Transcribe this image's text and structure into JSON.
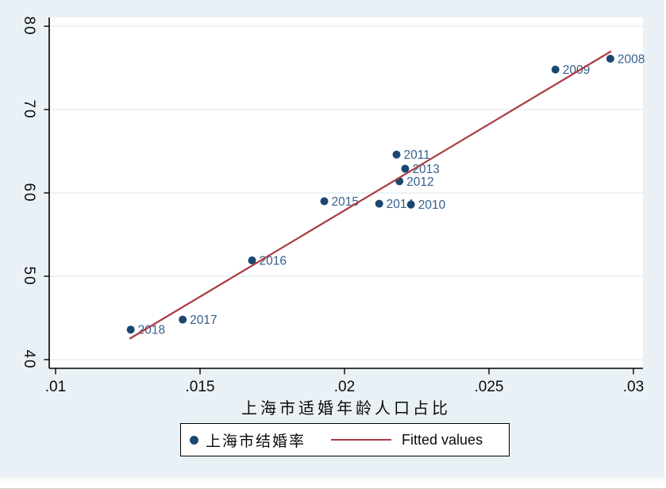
{
  "chart_data": {
    "type": "scatter",
    "title": "",
    "xlabel": "上海市适婚年龄人口占比",
    "ylabel": "",
    "xlim": [
      0.01,
      0.03
    ],
    "ylim": [
      40,
      80
    ],
    "x_ticks": [
      {
        "value": 0.01,
        "label": ".01"
      },
      {
        "value": 0.015,
        "label": ".015"
      },
      {
        "value": 0.02,
        "label": ".02"
      },
      {
        "value": 0.025,
        "label": ".025"
      },
      {
        "value": 0.03,
        "label": ".03"
      }
    ],
    "y_ticks": [
      {
        "value": 40,
        "label": "40"
      },
      {
        "value": 50,
        "label": "50"
      },
      {
        "value": 60,
        "label": "60"
      },
      {
        "value": 70,
        "label": "70"
      },
      {
        "value": 80,
        "label": "80"
      }
    ],
    "grid": "horizontal-only",
    "legend_position": "bottom-center",
    "series": [
      {
        "name": "上海市结婚率",
        "type": "scatter",
        "points": [
          {
            "year": "2008",
            "x": 0.0292,
            "y": 76.1
          },
          {
            "year": "2009",
            "x": 0.0273,
            "y": 74.8
          },
          {
            "year": "2010",
            "x": 0.0223,
            "y": 58.6
          },
          {
            "year": "2011",
            "x": 0.0218,
            "y": 64.6
          },
          {
            "year": "2012",
            "x": 0.0219,
            "y": 61.4
          },
          {
            "year": "2013",
            "x": 0.0221,
            "y": 62.9
          },
          {
            "year": "2014",
            "x": 0.0212,
            "y": 58.7
          },
          {
            "year": "2015",
            "x": 0.0193,
            "y": 59.0
          },
          {
            "year": "2016",
            "x": 0.0168,
            "y": 51.9
          },
          {
            "year": "2017",
            "x": 0.0144,
            "y": 44.8
          },
          {
            "year": "2018",
            "x": 0.0126,
            "y": 43.6
          }
        ]
      }
    ],
    "fitted_line": {
      "name": "Fitted values",
      "x1": 0.01256,
      "y1": 42.5,
      "x2": 0.02923,
      "y2": 77.0
    }
  },
  "legend": {
    "scatter_label": "上海市结婚率",
    "fitted_label": "Fitted values"
  },
  "colors": {
    "marker": "#1a476f",
    "marker_label": "#35618c",
    "fitted_line": "#a93b42",
    "plot_background": "#ffffff",
    "outer_background": "#eaf1f6",
    "gridline": "#e2eaf2",
    "axis": "#000000"
  }
}
